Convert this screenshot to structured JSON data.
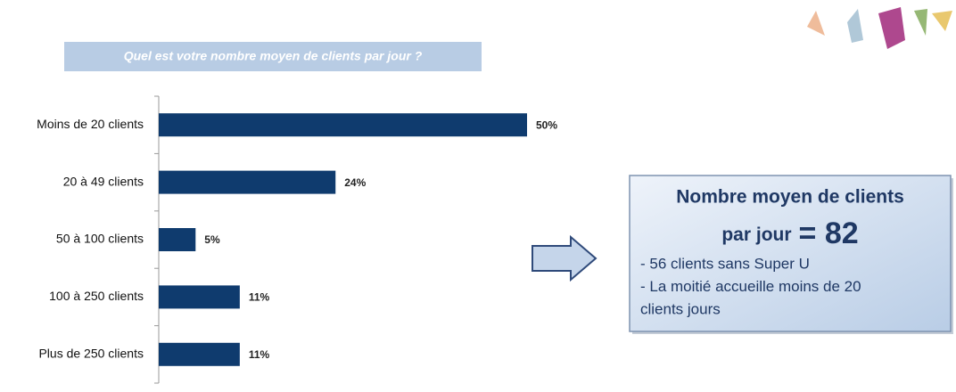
{
  "chart_data": {
    "type": "bar",
    "orientation": "horizontal",
    "title": "Quel est votre nombre moyen de clients par jour ?",
    "categories": [
      "Moins de 20 clients",
      "20 à 49 clients",
      "50 à 100 clients",
      "100 à 250 clients",
      "Plus de 250 clients"
    ],
    "values": [
      50,
      24,
      5,
      11,
      11
    ],
    "value_labels": [
      "50%",
      "24%",
      "5%",
      "11%",
      "11%"
    ],
    "color": "#0f3b6e"
  },
  "callout": {
    "heading_line1": "Nombre moyen de clients",
    "heading_line2": "par jour",
    "highlight": "= 82",
    "notes": [
      "- 56 clients sans Super U",
      "- La moitié accueille moins de 20",
      "clients jours"
    ]
  }
}
